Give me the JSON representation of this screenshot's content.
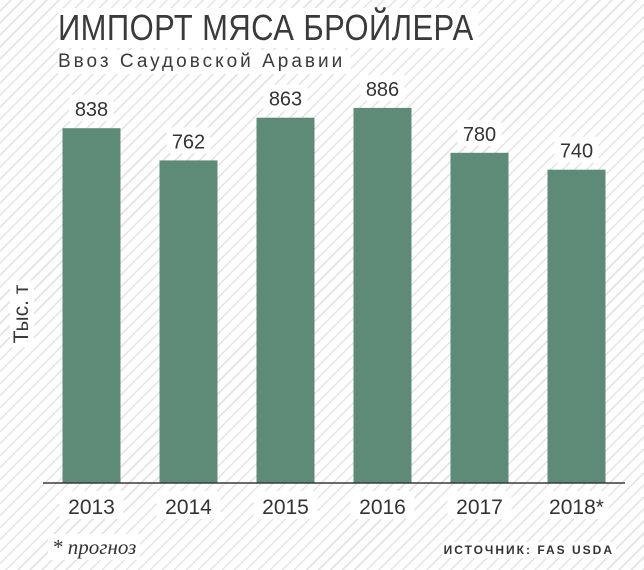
{
  "chart_data": {
    "type": "bar",
    "title": "ИМПОРТ МЯСА БРОЙЛЕРА",
    "subtitle": "Ввоз Саудовской Аравии",
    "ylabel": "Тыс. т",
    "xlabel": "",
    "categories": [
      "2013",
      "2014",
      "2015",
      "2016",
      "2017",
      "2018*"
    ],
    "values": [
      838,
      762,
      863,
      886,
      780,
      740
    ],
    "data_labels": [
      "838",
      "762",
      "863",
      "886",
      "780",
      "740"
    ],
    "ylim": [
      0,
      900
    ],
    "grid": false,
    "legend": "none",
    "bar_color": "#5e8b78"
  },
  "footnote": "* прогноз",
  "source": "ИСТОЧНИК: FAS USDA"
}
